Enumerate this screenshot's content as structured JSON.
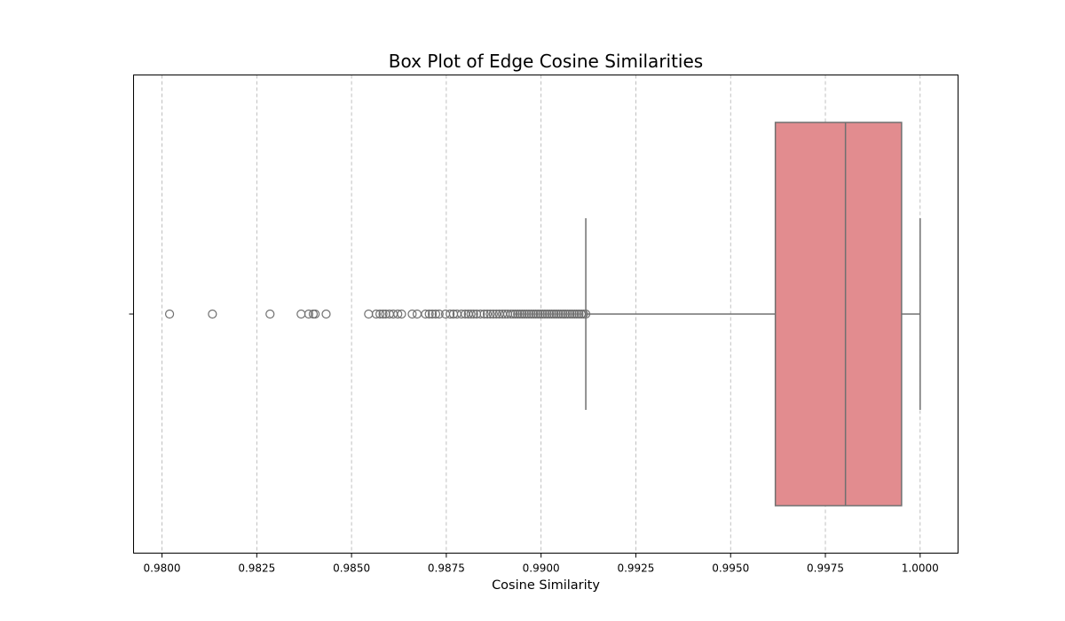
{
  "chart_data": {
    "type": "boxplot",
    "orientation": "horizontal",
    "title": "Box Plot of Edge Cosine Similarities",
    "xlabel": "Cosine Similarity",
    "ylabel": "",
    "xlim": [
      0.97925,
      1.001
    ],
    "xticks": [
      0.98,
      0.9825,
      0.985,
      0.9875,
      0.99,
      0.9925,
      0.995,
      0.9975,
      1.0
    ],
    "xtick_labels": [
      "0.9800",
      "0.9825",
      "0.9850",
      "0.9875",
      "0.9900",
      "0.9925",
      "0.9950",
      "0.9975",
      "1.0000"
    ],
    "grid": "x-axis dashed",
    "box": {
      "whisker_low": 0.99118,
      "q1": 0.99618,
      "median": 0.99803,
      "q3": 0.99951,
      "whisker_high": 1.0
    },
    "outliers": [
      0.9802,
      0.98133,
      0.98285,
      0.98367,
      0.98387,
      0.98399,
      0.98404,
      0.98433,
      0.98545,
      0.98565,
      0.98575,
      0.98583,
      0.9859,
      0.986,
      0.9861,
      0.98622,
      0.98632,
      0.9866,
      0.98673,
      0.98695,
      0.98705,
      0.98713,
      0.98722,
      0.98731,
      0.98748,
      0.9876,
      0.98769,
      0.98778,
      0.9879,
      0.988,
      0.98808,
      0.98815,
      0.98822,
      0.9883,
      0.9884,
      0.9885,
      0.98858,
      0.98866,
      0.98874,
      0.98882,
      0.9889,
      0.98898,
      0.98905,
      0.98912,
      0.9892,
      0.98926,
      0.98932,
      0.98938,
      0.98944,
      0.9895,
      0.98956,
      0.98962,
      0.98968,
      0.98974,
      0.9898,
      0.98986,
      0.98992,
      0.98998,
      0.99004,
      0.9901,
      0.99016,
      0.99022,
      0.99028,
      0.99034,
      0.9904,
      0.99046,
      0.99052,
      0.99058,
      0.99064,
      0.9907,
      0.99076,
      0.99082,
      0.99088,
      0.99094,
      0.991,
      0.99106,
      0.99112,
      0.99118
    ],
    "colors": {
      "box_fill": "#e28c8f",
      "box_stroke": "#707070",
      "outlier_stroke": "#707070"
    }
  }
}
